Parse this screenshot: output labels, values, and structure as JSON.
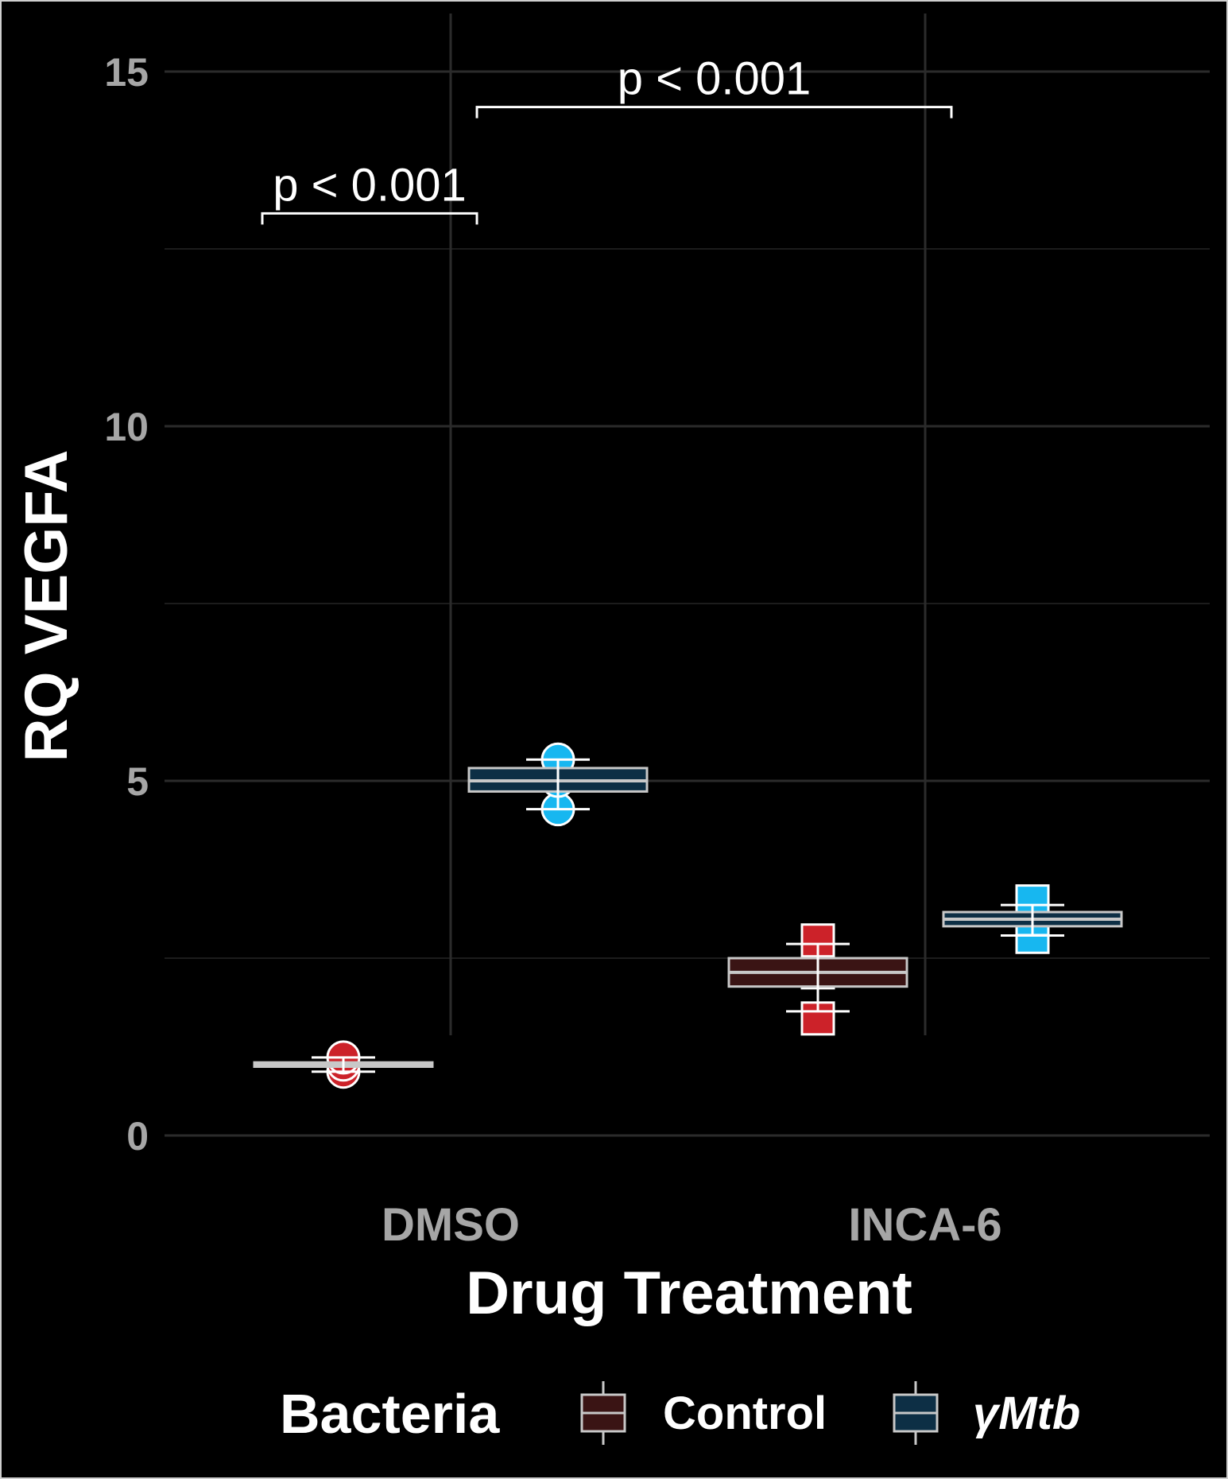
{
  "chart_data": {
    "type": "boxplot",
    "xlabel": "Drug Treatment",
    "ylabel": "RQ VEGFA",
    "ylim": [
      -1.5,
      16.5
    ],
    "yticks": [
      0,
      5,
      10,
      15
    ],
    "grid": true,
    "categories": [
      "DMSO",
      "INCA-6"
    ],
    "legend": {
      "title": "Bacteria",
      "position": "bottom",
      "entries": [
        {
          "label": "Control",
          "fill": "#3a1414",
          "point_color": "#cc2229",
          "italic": false
        },
        {
          "label": "γMtb",
          "fill": "#0d2f45",
          "point_color": "#17b7f0",
          "italic": true
        }
      ]
    },
    "series": [
      {
        "name": "Control",
        "boxes": [
          {
            "category": "DMSO",
            "q1": 0.97,
            "median": 1.0,
            "q3": 1.03,
            "whisker_low": 0.9,
            "whisker_high": 1.1,
            "points": [
              0.9,
              1.0,
              1.1
            ],
            "marker": "circle"
          },
          {
            "category": "INCA-6",
            "q1": 2.1,
            "median": 2.3,
            "q3": 2.5,
            "whisker_low": 1.75,
            "whisker_high": 2.7,
            "points": [
              1.65,
              2.3,
              2.75
            ],
            "marker": "square"
          }
        ]
      },
      {
        "name": "γMtb",
        "boxes": [
          {
            "category": "DMSO",
            "q1": 4.85,
            "median": 5.0,
            "q3": 5.18,
            "whisker_low": 4.6,
            "whisker_high": 5.3,
            "points": [
              4.6,
              5.0,
              5.3
            ],
            "marker": "circle"
          },
          {
            "category": "INCA-6",
            "q1": 2.95,
            "median": 3.05,
            "q3": 3.15,
            "whisker_low": 2.82,
            "whisker_high": 3.25,
            "points": [
              2.8,
              3.05,
              3.3
            ],
            "marker": "square"
          }
        ]
      }
    ],
    "annotations": [
      {
        "text": "p < 0.001",
        "from": {
          "category": "DMSO",
          "series": "Control"
        },
        "to": {
          "category": "DMSO",
          "series": "γMtb"
        },
        "y": 13.0
      },
      {
        "text": "p < 0.001",
        "from": {
          "category": "DMSO",
          "series": "γMtb"
        },
        "to": {
          "category": "INCA-6",
          "series": "γMtb"
        },
        "y": 14.5
      }
    ]
  }
}
